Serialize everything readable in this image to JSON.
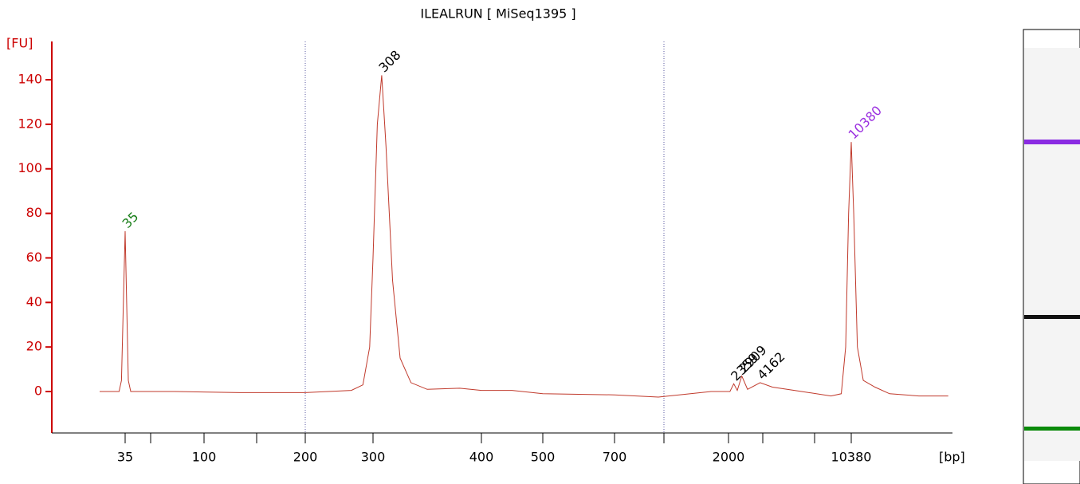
{
  "chart_data": {
    "type": "line",
    "title": "ILEALRUN  [ MiSeq1395 ]",
    "y_label": "[FU]",
    "x_label": "[bp]",
    "ylim": [
      -18.6,
      153.6
    ],
    "yticks": [
      0,
      20,
      40,
      60,
      80,
      100,
      120,
      140
    ],
    "xticks": [
      35,
      100,
      200,
      300,
      400,
      500,
      700,
      2000,
      10380
    ],
    "axis_color": "#cc0000",
    "trace": {
      "color": "#c0392b",
      "x": [
        14,
        30,
        32,
        35,
        37.6,
        39.6,
        76,
        135,
        200,
        268,
        285,
        295,
        300,
        304,
        308,
        312,
        318,
        325,
        335,
        350,
        380,
        400,
        450,
        500,
        700,
        1200,
        1800,
        2100,
        2359,
        2600,
        2909,
        3300,
        4162,
        5000,
        7000,
        9000,
        9700,
        10000,
        10200,
        10380,
        10550,
        10800,
        11200,
        12000,
        13000,
        15000,
        17000
      ],
      "y": [
        0,
        0,
        5,
        72,
        5,
        0,
        0,
        -0.5,
        -0.5,
        0.5,
        3,
        20,
        60,
        120,
        142,
        110,
        50,
        15,
        4,
        1,
        1.5,
        0.5,
        0.5,
        -1,
        -1.5,
        -2.5,
        0,
        0,
        3.5,
        0.5,
        7,
        1,
        4,
        2,
        0,
        -2,
        -1,
        20,
        80,
        112,
        80,
        20,
        5,
        2,
        -1,
        -2,
        -2
      ]
    },
    "annotations": [
      {
        "x": 35,
        "y": 72,
        "color": "#1a7f1a"
      },
      {
        "x": 308,
        "y": 142,
        "color": "#000000"
      },
      {
        "x": 2359,
        "y": 3.5,
        "color": "#000000"
      },
      {
        "x": 2909,
        "y": 7,
        "color": "#000000"
      },
      {
        "x": 4162,
        "y": 4,
        "color": "#000000"
      },
      {
        "x": 10380,
        "y": 112,
        "color": "#9b30e0"
      }
    ]
  }
}
